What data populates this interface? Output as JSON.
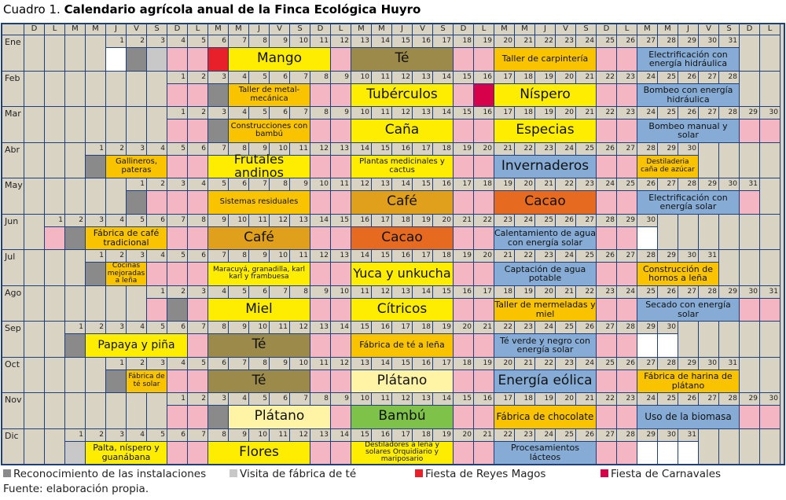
{
  "title": {
    "prefix": "Cuadro 1.",
    "text": "Calendario agrícola anual de la Finca Ecológica Huyro"
  },
  "weekdays": [
    "D",
    "L",
    "M",
    "M",
    "J",
    "V",
    "S",
    "D",
    "L",
    "M",
    "M",
    "J",
    "V",
    "S",
    "D",
    "L",
    "M",
    "M",
    "J",
    "V",
    "S",
    "D",
    "L",
    "M",
    "M",
    "J",
    "V",
    "S",
    "D",
    "L",
    "M",
    "M",
    "J",
    "V",
    "S",
    "D",
    "L"
  ],
  "months": [
    {
      "name": "Ene",
      "offset": 4,
      "days": 31,
      "weekend_bg": "#d9d3c4",
      "special": [
        {
          "day": 1,
          "color": "#ffffff"
        },
        {
          "day": 2,
          "color": "#8a8a8a"
        },
        {
          "day": 3,
          "color": "#c8c8c8"
        },
        {
          "day": 6,
          "color": "#e8202a"
        }
      ],
      "events": [
        {
          "label": "Mango",
          "start": 7,
          "span": 5,
          "color": "#ffed00",
          "size": 17
        },
        {
          "label": "Té",
          "start": 13,
          "span": 5,
          "color": "#9c8a4b",
          "size": 17
        },
        {
          "label": "Taller de carpintería",
          "start": 20,
          "span": 5,
          "color": "#f9c300",
          "size": 11
        },
        {
          "label": "Electrificación con energía hidráulica",
          "start": 27,
          "span": 5,
          "color": "#86acd6",
          "size": 11
        }
      ]
    },
    {
      "name": "Feb",
      "offset": 7,
      "days": 28,
      "special": [
        {
          "day": 3,
          "color": "#8a8a8a"
        },
        {
          "day": 16,
          "color": "#d6004b"
        }
      ],
      "events": [
        {
          "label": "Taller de metal-mecánica",
          "start": 4,
          "span": 4,
          "color": "#f9c300",
          "size": 10
        },
        {
          "label": "Tubérculos",
          "start": 10,
          "span": 5,
          "color": "#ffed00",
          "size": 17
        },
        {
          "label": "Níspero",
          "start": 17,
          "span": 5,
          "color": "#ffed00",
          "size": 17
        },
        {
          "label": "Bombeo con energía hidráulica",
          "start": 24,
          "span": 5,
          "color": "#86acd6",
          "size": 11
        }
      ]
    },
    {
      "name": "Mar",
      "offset": 7,
      "days": 31,
      "special": [
        {
          "day": 3,
          "color": "#8a8a8a"
        },
        {
          "day": 31,
          "color": "#ffffff"
        }
      ],
      "events": [
        {
          "label": "Construcciones con bambú",
          "start": 4,
          "span": 4,
          "color": "#f9c300",
          "size": 10
        },
        {
          "label": "Caña",
          "start": 10,
          "span": 5,
          "color": "#ffed00",
          "size": 17
        },
        {
          "label": "Especias",
          "start": 17,
          "span": 5,
          "color": "#ffed00",
          "size": 17
        },
        {
          "label": "Bombeo manual y solar",
          "start": 24,
          "span": 5,
          "color": "#86acd6",
          "size": 11
        }
      ]
    },
    {
      "name": "Abr",
      "offset": 3,
      "days": 30,
      "special": [
        {
          "day": 1,
          "color": "#8a8a8a"
        }
      ],
      "events": [
        {
          "label": "Gallineros, pateras",
          "start": 2,
          "span": 3,
          "color": "#f9c300",
          "size": 10
        },
        {
          "label": "Frutales andinos",
          "start": 7,
          "span": 5,
          "color": "#ffed00",
          "size": 16
        },
        {
          "label": "Plantas medicinales y cactus",
          "start": 14,
          "span": 5,
          "color": "#ffed00",
          "size": 10
        },
        {
          "label": "Invernaderos",
          "start": 21,
          "span": 5,
          "color": "#86acd6",
          "size": 17
        },
        {
          "label": "Destiladeria caña de azúcar",
          "start": 28,
          "span": 3,
          "color": "#f9c300",
          "size": 9
        }
      ]
    },
    {
      "name": "May",
      "offset": 5,
      "days": 31,
      "special": [
        {
          "day": 1,
          "color": "#8a8a8a"
        }
      ],
      "events": [
        {
          "label": "Sistemas residuales",
          "start": 5,
          "span": 5,
          "color": "#f9c300",
          "size": 10
        },
        {
          "label": "Café",
          "start": 12,
          "span": 5,
          "color": "#e0a01c",
          "size": 17
        },
        {
          "label": "Cacao",
          "start": 19,
          "span": 5,
          "color": "#e66a1f",
          "size": 17
        },
        {
          "label": "Electrificación con energía solar",
          "start": 26,
          "span": 5,
          "color": "#86acd6",
          "size": 11
        }
      ]
    },
    {
      "name": "Jun",
      "offset": 1,
      "days": 30,
      "special": [
        {
          "day": 2,
          "color": "#8a8a8a"
        },
        {
          "day": 30,
          "color": "#ffffff"
        }
      ],
      "events": [
        {
          "label": "Fábrica de café tradicional",
          "start": 3,
          "span": 4,
          "color": "#f9c300",
          "size": 11
        },
        {
          "label": "Café",
          "start": 9,
          "span": 5,
          "color": "#e0a01c",
          "size": 17
        },
        {
          "label": "Cacao",
          "start": 16,
          "span": 5,
          "color": "#e66a1f",
          "size": 17
        },
        {
          "label": "Calentamiento de agua con energía solar",
          "start": 23,
          "span": 5,
          "color": "#86acd6",
          "size": 11
        }
      ]
    },
    {
      "name": "Jul",
      "offset": 3,
      "days": 31,
      "special": [
        {
          "day": 1,
          "color": "#8a8a8a"
        }
      ],
      "events": [
        {
          "label": "Cocinas mejoradas a leña",
          "start": 2,
          "span": 2,
          "color": "#f9c300",
          "size": 9
        },
        {
          "label": "Maracuyá, granadilla, karl karl y frambuesa",
          "start": 7,
          "span": 5,
          "color": "#ffed00",
          "size": 9
        },
        {
          "label": "Yuca y unkucha",
          "start": 14,
          "span": 5,
          "color": "#ffed00",
          "size": 16
        },
        {
          "label": "Captación de agua potable",
          "start": 21,
          "span": 5,
          "color": "#86acd6",
          "size": 11
        },
        {
          "label": "Construcción de hornos a leña",
          "start": 28,
          "span": 4,
          "color": "#f9c300",
          "size": 11
        }
      ]
    },
    {
      "name": "Ago",
      "offset": 6,
      "days": 31,
      "special": [
        {
          "day": 2,
          "color": "#8a8a8a"
        }
      ],
      "events": [
        {
          "label": "Miel",
          "start": 4,
          "span": 5,
          "color": "#ffed00",
          "size": 17
        },
        {
          "label": "Cítricos",
          "start": 11,
          "span": 5,
          "color": "#ffed00",
          "size": 17
        },
        {
          "label": "Taller de mermeladas y miel",
          "start": 18,
          "span": 5,
          "color": "#f9c300",
          "size": 11
        },
        {
          "label": "Secado con energía solar",
          "start": 25,
          "span": 5,
          "color": "#86acd6",
          "size": 11
        }
      ]
    },
    {
      "name": "Sep",
      "offset": 2,
      "days": 30,
      "special": [
        {
          "day": 1,
          "color": "#8a8a8a"
        },
        {
          "day": 29,
          "color": "#ffffff"
        },
        {
          "day": 30,
          "color": "#ffffff"
        }
      ],
      "events": [
        {
          "label": "Papaya y piña",
          "start": 2,
          "span": 5,
          "color": "#ffed00",
          "size": 14
        },
        {
          "label": "Té",
          "start": 8,
          "span": 5,
          "color": "#9c8a4b",
          "size": 17
        },
        {
          "label": "Fábrica de té a leña",
          "start": 15,
          "span": 5,
          "color": "#f9c300",
          "size": 11
        },
        {
          "label": "Té verde y negro con energía solar",
          "start": 22,
          "span": 5,
          "color": "#86acd6",
          "size": 11
        }
      ]
    },
    {
      "name": "Oct",
      "offset": 4,
      "days": 31,
      "special": [
        {
          "day": 1,
          "color": "#8a8a8a"
        }
      ],
      "events": [
        {
          "label": "Fábrica de té solar",
          "start": 2,
          "span": 2,
          "color": "#f9c300",
          "size": 9
        },
        {
          "label": "Té",
          "start": 6,
          "span": 5,
          "color": "#9c8a4b",
          "size": 17
        },
        {
          "label": "Plátano",
          "start": 13,
          "span": 5,
          "color": "#fff3a6",
          "size": 17
        },
        {
          "label": "Energía eólica",
          "start": 20,
          "span": 5,
          "color": "#86acd6",
          "size": 17
        },
        {
          "label": "Fábrica de harina de plátano",
          "start": 27,
          "span": 5,
          "color": "#f9c300",
          "size": 11
        }
      ]
    },
    {
      "name": "Nov",
      "offset": 7,
      "days": 30,
      "special": [
        {
          "day": 3,
          "color": "#8a8a8a"
        }
      ],
      "events": [
        {
          "label": "Plátano",
          "start": 4,
          "span": 5,
          "color": "#fff3a6",
          "size": 17
        },
        {
          "label": "Bambú",
          "start": 10,
          "span": 5,
          "color": "#7ec24a",
          "size": 17
        },
        {
          "label": "Fábrica de chocolate",
          "start": 17,
          "span": 5,
          "color": "#f9c300",
          "size": 12
        },
        {
          "label": "Uso de la biomasa",
          "start": 24,
          "span": 5,
          "color": "#86acd6",
          "size": 12
        }
      ]
    },
    {
      "name": "Dic",
      "offset": 2,
      "days": 31,
      "special": [
        {
          "day": 1,
          "color": "#c8c8c8"
        },
        {
          "day": 29,
          "color": "#ffffff"
        },
        {
          "day": 30,
          "color": "#ffffff"
        },
        {
          "day": 31,
          "color": "#ffffff"
        }
      ],
      "events": [
        {
          "label": "Palta, níspero y guanábana",
          "start": 2,
          "span": 4,
          "color": "#ffed00",
          "size": 11
        },
        {
          "label": "Flores",
          "start": 8,
          "span": 5,
          "color": "#ffed00",
          "size": 17
        },
        {
          "label": "Destiladores a leña y solares Orquidiario y mariposario",
          "start": 15,
          "span": 5,
          "color": "#ffed00",
          "size": 9
        },
        {
          "label": "Procesamientos lácteos",
          "start": 22,
          "span": 5,
          "color": "#86acd6",
          "size": 11
        }
      ]
    }
  ],
  "legend": [
    {
      "label": "Reconocimiento de las instalaciones",
      "color": "#8a8a8a"
    },
    {
      "label": "Visita de fábrica de té",
      "color": "#c8c8c8"
    },
    {
      "label": "Fiesta de Reyes Magos",
      "color": "#e8202a"
    },
    {
      "label": "Fiesta de Carnavales",
      "color": "#d6004b"
    }
  ],
  "source": "Fuente: elaboración propia."
}
